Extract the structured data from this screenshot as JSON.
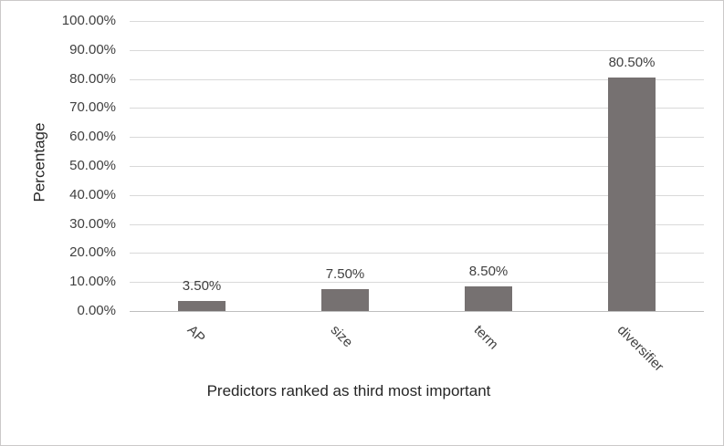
{
  "chart_data": {
    "type": "bar",
    "title": "",
    "categories": [
      "AP",
      "size",
      "term",
      "diversifier"
    ],
    "values": [
      3.5,
      7.5,
      8.5,
      80.5
    ],
    "value_labels": [
      "3.50%",
      "7.50%",
      "8.50%",
      "80.50%"
    ],
    "xlabel": "Predictors ranked as third most important",
    "ylabel": "Percentage",
    "ylim": [
      0,
      100
    ],
    "ytick_step": 10,
    "ytick_labels": [
      "0.00%",
      "10.00%",
      "20.00%",
      "30.00%",
      "40.00%",
      "50.00%",
      "60.00%",
      "70.00%",
      "80.00%",
      "90.00%",
      "100.00%"
    ],
    "grid": true,
    "legend": false,
    "category_label_rotation_deg": 45,
    "colors": {
      "bar": "#767171",
      "gridline": "#d9d9d9",
      "axis_line": "#bfbfbf",
      "tick_text": "#404040",
      "title_text": "#262626",
      "frame_border": "#cbc9c9"
    }
  }
}
